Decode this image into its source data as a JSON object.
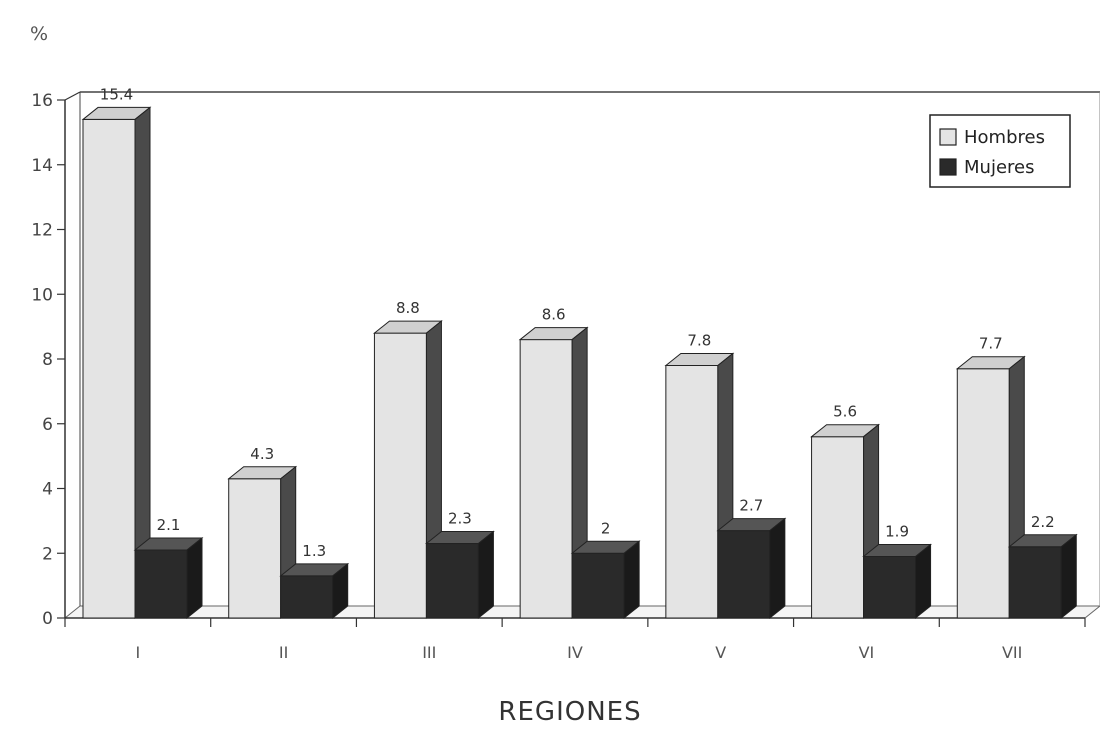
{
  "chart_data": {
    "type": "bar",
    "y_unit_label": "%",
    "xlabel": "REGIONES",
    "ylabel": "",
    "ylim": [
      0,
      16
    ],
    "yticks": [
      0,
      2,
      4,
      6,
      8,
      10,
      12,
      14,
      16
    ],
    "categories": [
      "I",
      "II",
      "III",
      "IV",
      "V",
      "VI",
      "VII"
    ],
    "series": [
      {
        "name": "Hombres",
        "values": [
          15.4,
          4.3,
          8.8,
          8.6,
          7.8,
          5.6,
          7.7
        ],
        "value_labels": [
          "15.4",
          "4.3",
          "8.8",
          "8.6",
          "7.8",
          "5.6",
          "7.7"
        ]
      },
      {
        "name": "Mujeres",
        "values": [
          2.1,
          1.3,
          2.3,
          2,
          2.7,
          1.9,
          2.2
        ],
        "value_labels": [
          "2.1",
          "1.3",
          "2.3",
          "2",
          "2.7",
          "1.9",
          "2.2"
        ]
      }
    ],
    "legend_position": "top-right",
    "grid": false,
    "colors": {
      "hombres_front": "#e4e4e4",
      "hombres_side": "#4a4a4a",
      "mujeres_front": "#2a2a2a",
      "mujeres_side": "#1a1a1a"
    }
  }
}
